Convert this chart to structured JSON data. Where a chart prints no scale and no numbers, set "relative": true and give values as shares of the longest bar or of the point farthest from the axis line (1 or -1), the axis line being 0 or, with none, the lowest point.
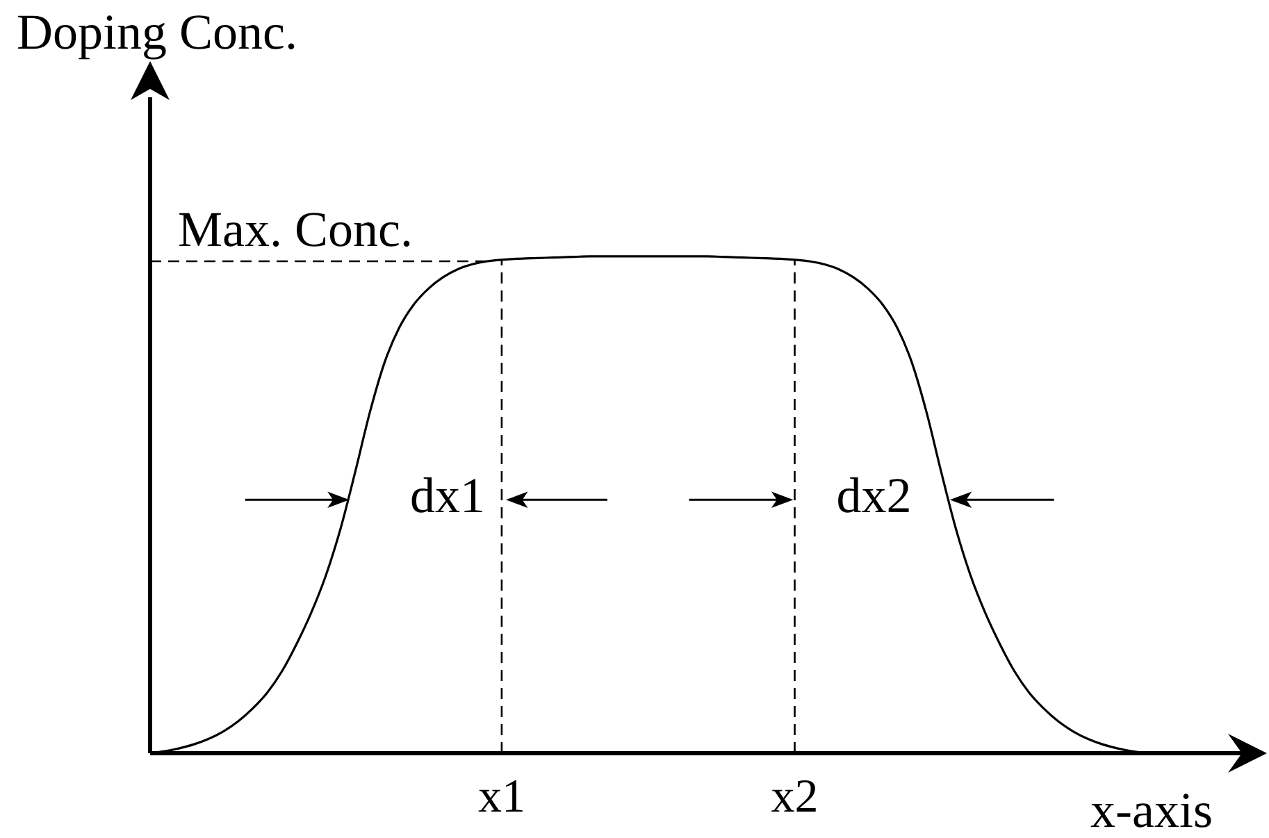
{
  "chart_data": {
    "type": "line",
    "xlabel": "x-axis",
    "ylabel": "Doping Conc.",
    "relative": true,
    "marker": "none",
    "categories": [
      null,
      null,
      null,
      null,
      null,
      null,
      null,
      null,
      null,
      null,
      null,
      null,
      null,
      null,
      null,
      null,
      null,
      null,
      null,
      null,
      null,
      null,
      null,
      null,
      "x1",
      null,
      null,
      null,
      null,
      null,
      null,
      null,
      null,
      null,
      null,
      null,
      null,
      null,
      null,
      null,
      null,
      null,
      null,
      null,
      "x2",
      null,
      null,
      null,
      null,
      null,
      null,
      null,
      null,
      null,
      null,
      null,
      null,
      null,
      null,
      null,
      null,
      null,
      null,
      null,
      null,
      null,
      null,
      null,
      null,
      null,
      null,
      null,
      null,
      null,
      null,
      null
    ],
    "series": [
      {
        "color": "#000000",
        "values": [
          0,
          0.004,
          0.01,
          0.018,
          0.029,
          0.044,
          0.064,
          0.09,
          0.122,
          0.165,
          0.22,
          0.283,
          0.358,
          0.452,
          0.566,
          0.686,
          0.786,
          0.856,
          0.903,
          0.935,
          0.958,
          0.974,
          0.984,
          0.99,
          0.993,
          0.995,
          0.996,
          0.997,
          0.998,
          0.999,
          1,
          1,
          1,
          1,
          1,
          1,
          1,
          1,
          1,
          0.999,
          0.998,
          0.997,
          0.996,
          0.995,
          0.993,
          0.99,
          0.984,
          0.974,
          0.958,
          0.935,
          0.903,
          0.856,
          0.786,
          0.686,
          0.566,
          0.452,
          0.358,
          0.283,
          0.22,
          0.165,
          0.122,
          0.09,
          0.064,
          0.044,
          0.029,
          0.018,
          0.01,
          0.004,
          0,
          null,
          null,
          null,
          null,
          null,
          null,
          null
        ]
      }
    ],
    "ref_lines": [
      {
        "axis": "y",
        "value": 0.99,
        "label": "Max. Conc.",
        "color": "#000000",
        "line_style": "dashed"
      },
      {
        "axis": "x",
        "value": "x1",
        "color": "#000000",
        "line_style": "dashed"
      },
      {
        "axis": "x",
        "value": "x2",
        "color": "#000000",
        "line_style": "dashed"
      }
    ],
    "annotations": [
      {
        "text": "dx1",
        "x": "x1",
        "y": 0.51
      },
      {
        "text": "dx2",
        "x": "x2",
        "y": 0.51
      }
    ]
  }
}
